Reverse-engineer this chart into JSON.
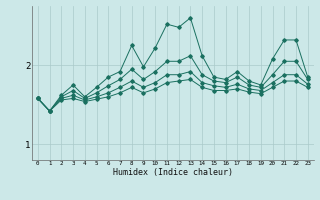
{
  "xlabel": "Humidex (Indice chaleur)",
  "bg_color": "#cce8e8",
  "grid_color": "#aacaca",
  "line_color": "#1a7060",
  "xlim": [
    -0.5,
    23.5
  ],
  "ylim": [
    0.8,
    2.75
  ],
  "yticks": [
    1,
    2
  ],
  "xticks": [
    0,
    1,
    2,
    3,
    4,
    5,
    6,
    7,
    8,
    9,
    10,
    11,
    12,
    13,
    14,
    15,
    16,
    17,
    18,
    19,
    20,
    21,
    22,
    23
  ],
  "lines": [
    {
      "x": [
        0,
        1,
        2,
        3,
        4,
        5,
        6,
        7,
        8,
        9,
        10,
        11,
        12,
        13,
        14,
        15,
        16,
        17,
        18,
        19,
        20,
        21,
        22,
        23
      ],
      "y": [
        1.58,
        1.42,
        1.62,
        1.75,
        1.6,
        1.72,
        1.85,
        1.92,
        2.25,
        1.98,
        2.22,
        2.52,
        2.48,
        2.6,
        2.12,
        1.85,
        1.82,
        1.92,
        1.8,
        1.75,
        2.08,
        2.32,
        2.32,
        1.85
      ]
    },
    {
      "x": [
        0,
        1,
        2,
        3,
        4,
        5,
        6,
        7,
        8,
        9,
        10,
        11,
        12,
        13,
        14,
        15,
        16,
        17,
        18,
        19,
        20,
        21,
        22,
        23
      ],
      "y": [
        1.58,
        1.42,
        1.6,
        1.68,
        1.58,
        1.65,
        1.74,
        1.82,
        1.95,
        1.82,
        1.92,
        2.05,
        2.05,
        2.12,
        1.88,
        1.8,
        1.78,
        1.85,
        1.75,
        1.72,
        1.88,
        2.05,
        2.05,
        1.82
      ]
    },
    {
      "x": [
        0,
        1,
        2,
        3,
        4,
        5,
        6,
        7,
        8,
        9,
        10,
        11,
        12,
        13,
        14,
        15,
        16,
        17,
        18,
        19,
        20,
        21,
        22,
        23
      ],
      "y": [
        1.58,
        1.42,
        1.58,
        1.62,
        1.56,
        1.6,
        1.65,
        1.72,
        1.8,
        1.72,
        1.78,
        1.88,
        1.88,
        1.92,
        1.78,
        1.74,
        1.72,
        1.76,
        1.7,
        1.68,
        1.78,
        1.88,
        1.88,
        1.76
      ]
    },
    {
      "x": [
        0,
        1,
        2,
        3,
        4,
        5,
        6,
        7,
        8,
        9,
        10,
        11,
        12,
        13,
        14,
        15,
        16,
        17,
        18,
        19,
        20,
        21,
        22,
        23
      ],
      "y": [
        1.58,
        1.42,
        1.56,
        1.58,
        1.54,
        1.57,
        1.6,
        1.65,
        1.72,
        1.65,
        1.7,
        1.78,
        1.8,
        1.82,
        1.72,
        1.68,
        1.68,
        1.7,
        1.66,
        1.64,
        1.72,
        1.8,
        1.8,
        1.72
      ]
    }
  ]
}
